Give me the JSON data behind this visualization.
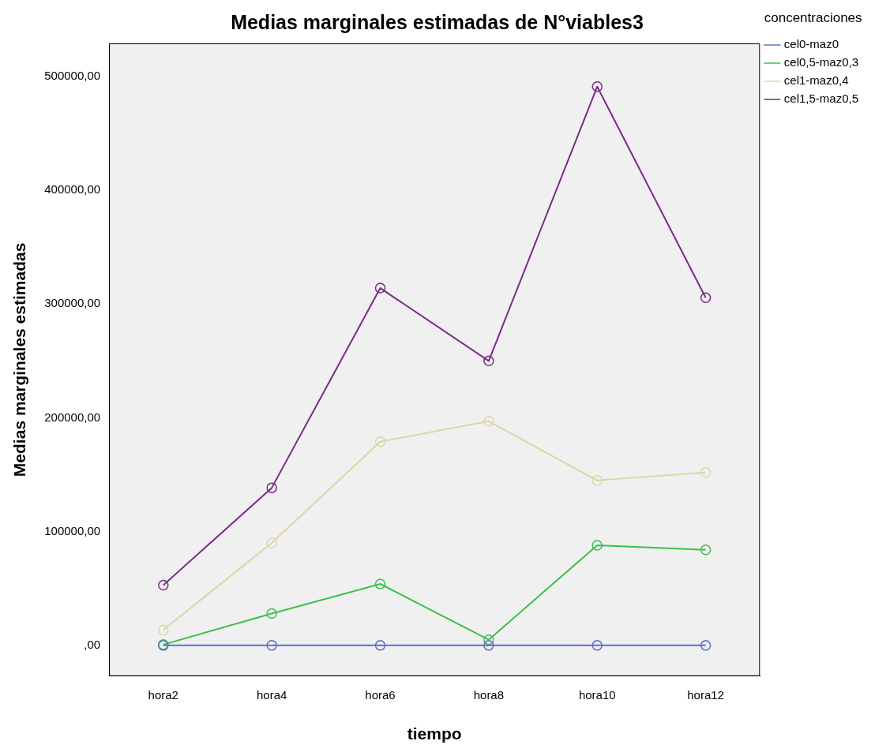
{
  "chart_data": {
    "type": "line",
    "title": "Medias marginales estimadas de N°viables3",
    "xlabel": "tiempo",
    "ylabel": "Medias marginales estimadas",
    "legend_title": "concentraciones",
    "legend": "top right",
    "marker": "circle",
    "line_style": "solid",
    "grid": false,
    "categories": [
      "hora2",
      "hora4",
      "hora6",
      "hora8",
      "hora10",
      "hora12"
    ],
    "ylim": [
      -27000,
      529000
    ],
    "yticks": [
      {
        "value": 0,
        "label": ",00"
      },
      {
        "value": 100000,
        "label": "100000,00"
      },
      {
        "value": 200000,
        "label": "200000,00"
      },
      {
        "value": 300000,
        "label": "300000,00"
      },
      {
        "value": 400000,
        "label": "400000,00"
      },
      {
        "value": 500000,
        "label": "500000,00"
      }
    ],
    "series": [
      {
        "name": "cel0-maz0",
        "color": "#5b6fc9",
        "values": [
          0,
          0,
          0,
          0,
          0,
          0
        ]
      },
      {
        "name": "cel0,5-maz0,3",
        "color": "#3cbf4b",
        "values": [
          700,
          28000,
          54000,
          5000,
          88000,
          84000
        ]
      },
      {
        "name": "cel1-maz0,4",
        "color": "#ddd6a6",
        "values": [
          13600,
          90000,
          179000,
          197000,
          145000,
          152000
        ]
      },
      {
        "name": "cel1,5-maz0,5",
        "color": "#7b2a88",
        "values": [
          53000,
          138500,
          314000,
          250000,
          491000,
          305500
        ]
      }
    ]
  }
}
